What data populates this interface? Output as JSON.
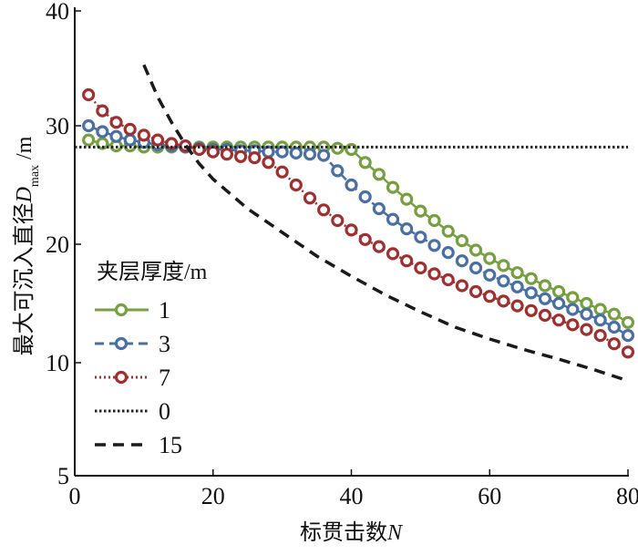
{
  "chart_data": {
    "type": "line",
    "xlabel": "标贯击数",
    "xlabel_var": "N",
    "ylabel": "最大可沉入直径",
    "ylabel_var": "D",
    "ylabel_sub": "max",
    "ylabel_unit": "/m",
    "xlim": [
      0,
      80
    ],
    "ylim": [
      5,
      40
    ],
    "xticks": [
      "0",
      "20",
      "40",
      "60",
      "80"
    ],
    "xtick_values": [
      0,
      20,
      40,
      60,
      80
    ],
    "yticks": [
      "5",
      "10",
      "20",
      "30",
      "40"
    ],
    "ytick_values": [
      5,
      10,
      20,
      30,
      40
    ],
    "grid": false,
    "legend_title": "夹层厚度/m",
    "legend_placement": "center-left",
    "series": [
      {
        "name": "1",
        "color": "#76a040",
        "style": "solid-marker",
        "x": [
          2,
          4,
          6,
          8,
          10,
          12,
          14,
          16,
          18,
          20,
          22,
          24,
          26,
          28,
          30,
          32,
          34,
          36,
          38,
          40,
          42,
          44,
          46,
          48,
          50,
          52,
          54,
          56,
          58,
          60,
          62,
          64,
          66,
          68,
          70,
          72,
          74,
          76,
          78,
          80
        ],
        "y": [
          28.8,
          28.5,
          28.3,
          28.3,
          28.2,
          28.2,
          28.2,
          28.2,
          28.2,
          28.2,
          28.2,
          28.2,
          28.2,
          28.2,
          28.2,
          28.2,
          28.2,
          28.2,
          28.1,
          28.0,
          26.9,
          25.9,
          24.8,
          23.8,
          22.8,
          22.0,
          21.1,
          20.3,
          19.5,
          18.8,
          18.2,
          17.6,
          17.1,
          16.5,
          16.0,
          15.5,
          15.0,
          14.5,
          14.1,
          13.4
        ]
      },
      {
        "name": "3",
        "color": "#4a6fa5",
        "style": "dashed-marker",
        "x": [
          2,
          4,
          6,
          8,
          10,
          12,
          14,
          16,
          18,
          20,
          22,
          24,
          26,
          28,
          30,
          32,
          34,
          36,
          38,
          40,
          42,
          44,
          46,
          48,
          50,
          52,
          54,
          56,
          58,
          60,
          62,
          64,
          66,
          68,
          70,
          72,
          74,
          76,
          78,
          80
        ],
        "y": [
          30.0,
          29.5,
          29.1,
          28.8,
          28.6,
          28.4,
          28.3,
          28.2,
          28.1,
          28.0,
          28.0,
          27.9,
          27.9,
          27.8,
          27.8,
          27.7,
          27.6,
          27.5,
          26.2,
          25.0,
          24.0,
          23.0,
          22.1,
          21.3,
          20.6,
          19.9,
          19.3,
          18.6,
          18.0,
          17.4,
          16.9,
          16.4,
          15.9,
          15.4,
          15.0,
          14.5,
          14.1,
          13.6,
          13.0,
          12.3
        ]
      },
      {
        "name": "7",
        "color": "#a03030",
        "style": "dotted-marker",
        "x": [
          2,
          4,
          6,
          8,
          10,
          12,
          14,
          16,
          18,
          20,
          22,
          24,
          26,
          28,
          30,
          32,
          34,
          36,
          38,
          40,
          42,
          44,
          46,
          48,
          50,
          52,
          54,
          56,
          58,
          60,
          62,
          64,
          66,
          68,
          70,
          72,
          74,
          76,
          78,
          80
        ],
        "y": [
          32.7,
          31.3,
          30.3,
          29.7,
          29.2,
          28.8,
          28.5,
          28.3,
          28.0,
          27.8,
          27.6,
          27.4,
          27.3,
          26.9,
          26.1,
          25.0,
          23.9,
          22.9,
          22.0,
          21.2,
          20.4,
          19.8,
          19.2,
          18.6,
          18.0,
          17.5,
          17.0,
          16.5,
          16.0,
          15.6,
          15.2,
          14.8,
          14.4,
          14.0,
          13.6,
          13.2,
          12.8,
          12.3,
          11.6,
          10.9
        ]
      },
      {
        "name": "0",
        "color": "#222222",
        "style": "dotted",
        "x": [
          0,
          80
        ],
        "y": [
          28.2,
          28.2
        ]
      },
      {
        "name": "15",
        "color": "#1a1a1a",
        "style": "dashed",
        "x": [
          10,
          12,
          14,
          16,
          18,
          20,
          25,
          30,
          35,
          40,
          45,
          50,
          55,
          60,
          65,
          70,
          75,
          80
        ],
        "y": [
          35.3,
          32.5,
          30.3,
          28.4,
          26.8,
          25.5,
          23.0,
          21.0,
          19.0,
          17.3,
          15.7,
          14.3,
          13.0,
          12.0,
          11.1,
          10.3,
          9.7,
          9.2
        ]
      }
    ]
  }
}
